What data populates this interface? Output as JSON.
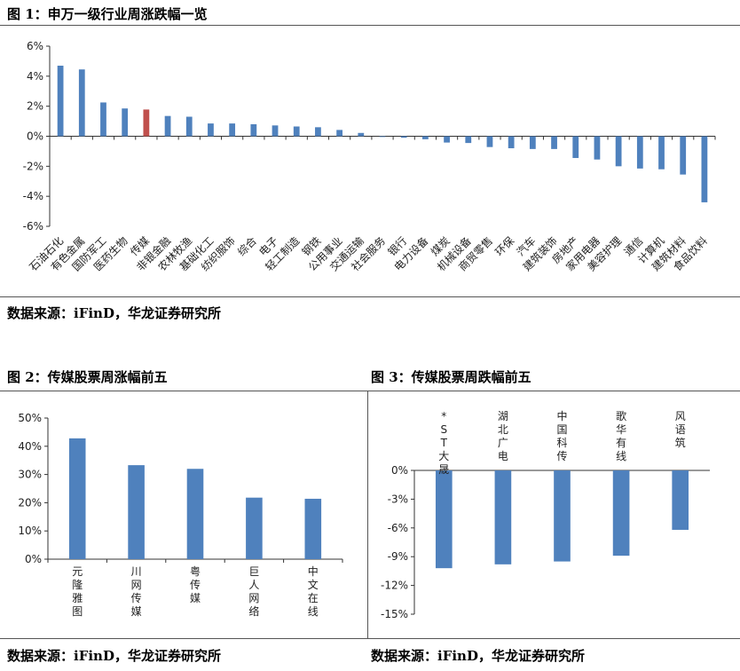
{
  "figures": [
    {
      "title": "图 1：申万一级行业周涨跌幅一览",
      "source": "数据来源：iFinD，华龙证券研究所",
      "chart_data": {
        "type": "bar",
        "categories": [
          "石油石化",
          "有色金属",
          "国防军工",
          "医药生物",
          "传媒",
          "非银金融",
          "农林牧渔",
          "基础化工",
          "纺织服饰",
          "综合",
          "电子",
          "轻工制造",
          "钢铁",
          "公用事业",
          "交通运输",
          "社会服务",
          "银行",
          "电力设备",
          "煤炭",
          "机械设备",
          "商贸零售",
          "环保",
          "汽车",
          "建筑装饰",
          "房地产",
          "家用电器",
          "美容护理",
          "通信",
          "计算机",
          "建筑材料",
          "食品饮料"
        ],
        "values": [
          4.7,
          4.45,
          2.25,
          1.85,
          1.78,
          1.35,
          1.3,
          0.85,
          0.85,
          0.8,
          0.72,
          0.65,
          0.6,
          0.42,
          0.22,
          -0.05,
          -0.1,
          -0.2,
          -0.42,
          -0.45,
          -0.72,
          -0.8,
          -0.85,
          -0.85,
          -1.45,
          -1.55,
          -2.0,
          -2.15,
          -2.2,
          -2.55,
          -4.4
        ],
        "highlight": "传媒",
        "ylim": [
          -6,
          6
        ],
        "yticks": [
          "6%",
          "4%",
          "2%",
          "0%",
          "-2%",
          "-4%",
          "-6%"
        ],
        "colors": {
          "bar": "#4f81bd",
          "highlight": "#c0504d"
        }
      }
    },
    {
      "title": "图 2：传媒股票周涨幅前五",
      "source": "数据来源：iFinD，华龙证券研究所",
      "chart_data": {
        "type": "bar",
        "categories": [
          "元隆雅图",
          "川网传媒",
          "粤传媒",
          "巨人网络",
          "中文在线"
        ],
        "values": [
          42.8,
          33.3,
          32.0,
          21.8,
          21.4
        ],
        "ylim": [
          0,
          50
        ],
        "yticks": [
          "50%",
          "40%",
          "30%",
          "20%",
          "10%",
          "0%"
        ],
        "colors": {
          "bar": "#4f81bd"
        }
      }
    },
    {
      "title": "图 3：传媒股票周跌幅前五",
      "source": "数据来源：iFinD，华龙证券研究所",
      "chart_data": {
        "type": "bar",
        "categories": [
          "*ST大晟",
          "湖北广电",
          "中国科传",
          "歌华有线",
          "风语筑"
        ],
        "values": [
          -10.2,
          -9.8,
          -9.5,
          -8.9,
          -6.2
        ],
        "ylim": [
          -15,
          0
        ],
        "yticks": [
          "0%",
          "-3%",
          "-6%",
          "-9%",
          "-12%",
          "-15%"
        ],
        "colors": {
          "bar": "#4f81bd"
        }
      }
    }
  ]
}
